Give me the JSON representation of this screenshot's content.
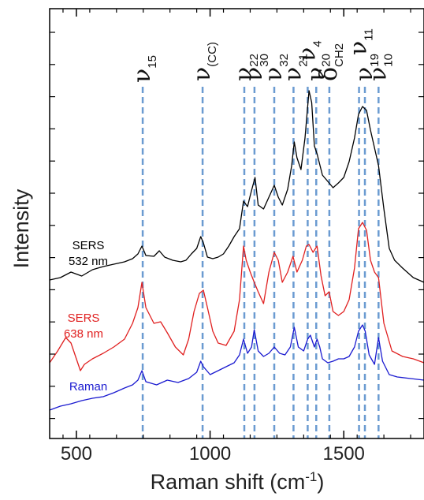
{
  "chart_data": {
    "type": "line",
    "xlabel": "Raman shift (cm",
    "xlabel_sup": "-1",
    "xlabel_end": ")",
    "ylabel": "Intensity",
    "xlim": [
      400,
      1800
    ],
    "x_ticks": [
      500,
      1000,
      1500
    ],
    "x_tick_labels": [
      "500",
      "1000",
      "1500"
    ],
    "grid": false,
    "series": [
      {
        "name": "SERS 532 nm",
        "label_lines": [
          "SERS",
          "532 nm"
        ],
        "color": "#000000",
        "points": [
          [
            400,
            355
          ],
          [
            440,
            352
          ],
          [
            480,
            345
          ],
          [
            520,
            350
          ],
          [
            560,
            342
          ],
          [
            600,
            338
          ],
          [
            640,
            335
          ],
          [
            680,
            332
          ],
          [
            710,
            328
          ],
          [
            730,
            322
          ],
          [
            745,
            312
          ],
          [
            760,
            324
          ],
          [
            790,
            325
          ],
          [
            810,
            318
          ],
          [
            830,
            326
          ],
          [
            860,
            330
          ],
          [
            890,
            332
          ],
          [
            910,
            330
          ],
          [
            930,
            322
          ],
          [
            950,
            315
          ],
          [
            965,
            300
          ],
          [
            975,
            308
          ],
          [
            990,
            326
          ],
          [
            1010,
            328
          ],
          [
            1030,
            326
          ],
          [
            1050,
            322
          ],
          [
            1070,
            312
          ],
          [
            1090,
            300
          ],
          [
            1110,
            290
          ],
          [
            1125,
            255
          ],
          [
            1140,
            262
          ],
          [
            1150,
            248
          ],
          [
            1160,
            235
          ],
          [
            1168,
            225
          ],
          [
            1180,
            260
          ],
          [
            1200,
            265
          ],
          [
            1220,
            250
          ],
          [
            1240,
            235
          ],
          [
            1255,
            250
          ],
          [
            1270,
            260
          ],
          [
            1290,
            240
          ],
          [
            1305,
            210
          ],
          [
            1315,
            180
          ],
          [
            1325,
            200
          ],
          [
            1340,
            215
          ],
          [
            1355,
            175
          ],
          [
            1370,
            115
          ],
          [
            1380,
            130
          ],
          [
            1390,
            185
          ],
          [
            1400,
            195
          ],
          [
            1420,
            222
          ],
          [
            1440,
            230
          ],
          [
            1460,
            238
          ],
          [
            1480,
            232
          ],
          [
            1500,
            225
          ],
          [
            1520,
            205
          ],
          [
            1540,
            175
          ],
          [
            1555,
            145
          ],
          [
            1570,
            135
          ],
          [
            1585,
            140
          ],
          [
            1600,
            165
          ],
          [
            1620,
            195
          ],
          [
            1630,
            210
          ],
          [
            1650,
            265
          ],
          [
            1670,
            315
          ],
          [
            1690,
            330
          ],
          [
            1720,
            340
          ],
          [
            1760,
            352
          ],
          [
            1800,
            358
          ]
        ]
      },
      {
        "name": "SERS 638 nm",
        "label_lines": [
          "SERS",
          "638 nm"
        ],
        "color": "#e02020",
        "points": [
          [
            400,
            460
          ],
          [
            430,
            445
          ],
          [
            460,
            428
          ],
          [
            480,
            435
          ],
          [
            500,
            455
          ],
          [
            515,
            470
          ],
          [
            530,
            462
          ],
          [
            560,
            455
          ],
          [
            600,
            448
          ],
          [
            640,
            440
          ],
          [
            680,
            430
          ],
          [
            710,
            410
          ],
          [
            730,
            390
          ],
          [
            745,
            358
          ],
          [
            760,
            390
          ],
          [
            790,
            410
          ],
          [
            815,
            408
          ],
          [
            840,
            422
          ],
          [
            870,
            440
          ],
          [
            900,
            450
          ],
          [
            920,
            430
          ],
          [
            940,
            395
          ],
          [
            960,
            372
          ],
          [
            975,
            368
          ],
          [
            990,
            390
          ],
          [
            1010,
            420
          ],
          [
            1030,
            435
          ],
          [
            1060,
            438
          ],
          [
            1090,
            420
          ],
          [
            1110,
            380
          ],
          [
            1125,
            312
          ],
          [
            1135,
            330
          ],
          [
            1150,
            345
          ],
          [
            1165,
            358
          ],
          [
            1180,
            370
          ],
          [
            1200,
            385
          ],
          [
            1220,
            345
          ],
          [
            1240,
            320
          ],
          [
            1255,
            330
          ],
          [
            1270,
            358
          ],
          [
            1290,
            345
          ],
          [
            1310,
            325
          ],
          [
            1325,
            345
          ],
          [
            1345,
            330
          ],
          [
            1360,
            312
          ],
          [
            1370,
            310
          ],
          [
            1385,
            320
          ],
          [
            1400,
            312
          ],
          [
            1415,
            350
          ],
          [
            1430,
            375
          ],
          [
            1445,
            370
          ],
          [
            1460,
            395
          ],
          [
            1480,
            400
          ],
          [
            1500,
            395
          ],
          [
            1520,
            380
          ],
          [
            1540,
            340
          ],
          [
            1555,
            290
          ],
          [
            1570,
            282
          ],
          [
            1585,
            292
          ],
          [
            1600,
            330
          ],
          [
            1615,
            345
          ],
          [
            1630,
            352
          ],
          [
            1650,
            410
          ],
          [
            1680,
            445
          ],
          [
            1720,
            452
          ],
          [
            1760,
            455
          ],
          [
            1800,
            460
          ]
        ]
      },
      {
        "name": "Raman",
        "label_lines": [
          "Raman"
        ],
        "color": "#1a1ad0",
        "points": [
          [
            400,
            520
          ],
          [
            440,
            515
          ],
          [
            480,
            512
          ],
          [
            520,
            508
          ],
          [
            560,
            505
          ],
          [
            600,
            503
          ],
          [
            640,
            498
          ],
          [
            680,
            492
          ],
          [
            710,
            488
          ],
          [
            730,
            482
          ],
          [
            745,
            470
          ],
          [
            760,
            484
          ],
          [
            800,
            488
          ],
          [
            840,
            482
          ],
          [
            880,
            485
          ],
          [
            920,
            480
          ],
          [
            950,
            472
          ],
          [
            965,
            458
          ],
          [
            975,
            465
          ],
          [
            1000,
            475
          ],
          [
            1030,
            470
          ],
          [
            1060,
            465
          ],
          [
            1090,
            460
          ],
          [
            1110,
            450
          ],
          [
            1125,
            430
          ],
          [
            1140,
            448
          ],
          [
            1155,
            440
          ],
          [
            1165,
            418
          ],
          [
            1180,
            445
          ],
          [
            1200,
            452
          ],
          [
            1220,
            448
          ],
          [
            1240,
            440
          ],
          [
            1260,
            448
          ],
          [
            1280,
            450
          ],
          [
            1300,
            440
          ],
          [
            1315,
            415
          ],
          [
            1330,
            440
          ],
          [
            1350,
            445
          ],
          [
            1365,
            430
          ],
          [
            1375,
            425
          ],
          [
            1390,
            440
          ],
          [
            1400,
            430
          ],
          [
            1410,
            440
          ],
          [
            1420,
            455
          ],
          [
            1440,
            460
          ],
          [
            1460,
            458
          ],
          [
            1480,
            455
          ],
          [
            1500,
            455
          ],
          [
            1520,
            452
          ],
          [
            1540,
            440
          ],
          [
            1555,
            420
          ],
          [
            1570,
            412
          ],
          [
            1580,
            420
          ],
          [
            1595,
            450
          ],
          [
            1615,
            462
          ],
          [
            1630,
            428
          ],
          [
            1645,
            458
          ],
          [
            1670,
            475
          ],
          [
            1700,
            478
          ],
          [
            1750,
            480
          ],
          [
            1800,
            482
          ]
        ]
      }
    ],
    "peaks": [
      {
        "x": 748,
        "sym": "ν",
        "sub": "15",
        "rot": true
      },
      {
        "x": 972,
        "sym": "ν",
        "sub": "(CC)",
        "rot": true
      },
      {
        "x": 1128,
        "sym": "ν",
        "sub": "22",
        "rot": true
      },
      {
        "x": 1166,
        "sym": "ν",
        "sub": "30",
        "rot": true
      },
      {
        "x": 1240,
        "sym": "ν",
        "sub": "32",
        "rot": true
      },
      {
        "x": 1312,
        "sym": "ν",
        "sub": "21",
        "rot": true
      },
      {
        "x": 1365,
        "sym": "ν",
        "sub": "4",
        "rot": true
      },
      {
        "x": 1397,
        "sym": "ν",
        "sub": "20",
        "rot": true
      },
      {
        "x": 1446,
        "sym": "δ",
        "sub": "CH2",
        "rot": true
      },
      {
        "x": 1557,
        "sym": "ν",
        "sub": "11",
        "rot": true
      },
      {
        "x": 1579,
        "sym": "ν",
        "sub": "19",
        "rot": true
      },
      {
        "x": 1630,
        "sym": "ν",
        "sub": "10",
        "rot": true
      }
    ]
  }
}
